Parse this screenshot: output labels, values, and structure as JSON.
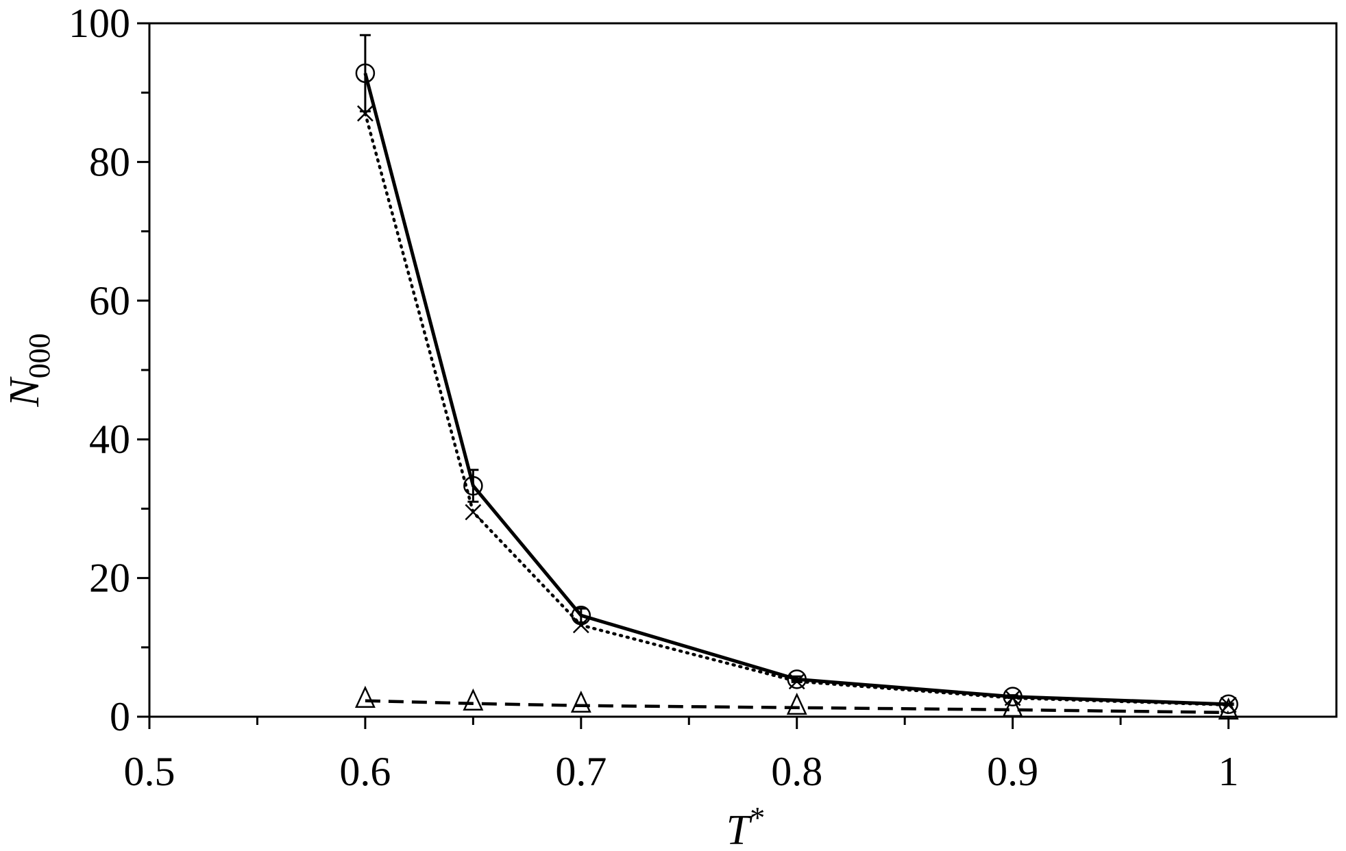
{
  "chart_data": {
    "type": "line",
    "xlabel": {
      "main": "T",
      "sup": "*"
    },
    "ylabel": {
      "main": "N",
      "sub": "000"
    },
    "xlim": [
      0.5,
      1.05
    ],
    "ylim": [
      0,
      100
    ],
    "x_ticks": [
      0.5,
      0.6,
      0.7,
      0.8,
      0.9,
      1.0
    ],
    "x_tick_labels": [
      "0.5",
      "0.6",
      "0.7",
      "0.8",
      "0.9",
      "1"
    ],
    "x_minor_ticks": [
      0.55,
      0.65,
      0.75,
      0.85,
      0.95
    ],
    "y_ticks": [
      0,
      20,
      40,
      60,
      80,
      100
    ],
    "y_tick_labels": [
      "0",
      "20",
      "40",
      "60",
      "80",
      "100"
    ],
    "y_minor_ticks": [
      10,
      30,
      50,
      70,
      90
    ],
    "grid": false,
    "series": [
      {
        "marker": "circle",
        "line": "solid",
        "x": [
          0.6,
          0.65,
          0.7,
          0.8,
          0.9,
          1.0
        ],
        "y": [
          92.8,
          33.3,
          14.6,
          5.4,
          2.9,
          1.8
        ],
        "yerr": [
          5.5,
          2.3,
          1.0,
          0.4,
          0.2,
          0.1
        ]
      },
      {
        "marker": "cross",
        "line": "dotted",
        "x": [
          0.6,
          0.65,
          0.7,
          0.8,
          0.9,
          1.0
        ],
        "y": [
          87.0,
          29.5,
          13.2,
          5.1,
          2.7,
          1.7
        ]
      },
      {
        "marker": "triangle",
        "line": "dashed",
        "x": [
          0.6,
          0.65,
          0.7,
          0.8,
          0.9,
          1.0
        ],
        "y": [
          2.3,
          1.9,
          1.6,
          1.3,
          1.0,
          0.6
        ]
      }
    ]
  }
}
